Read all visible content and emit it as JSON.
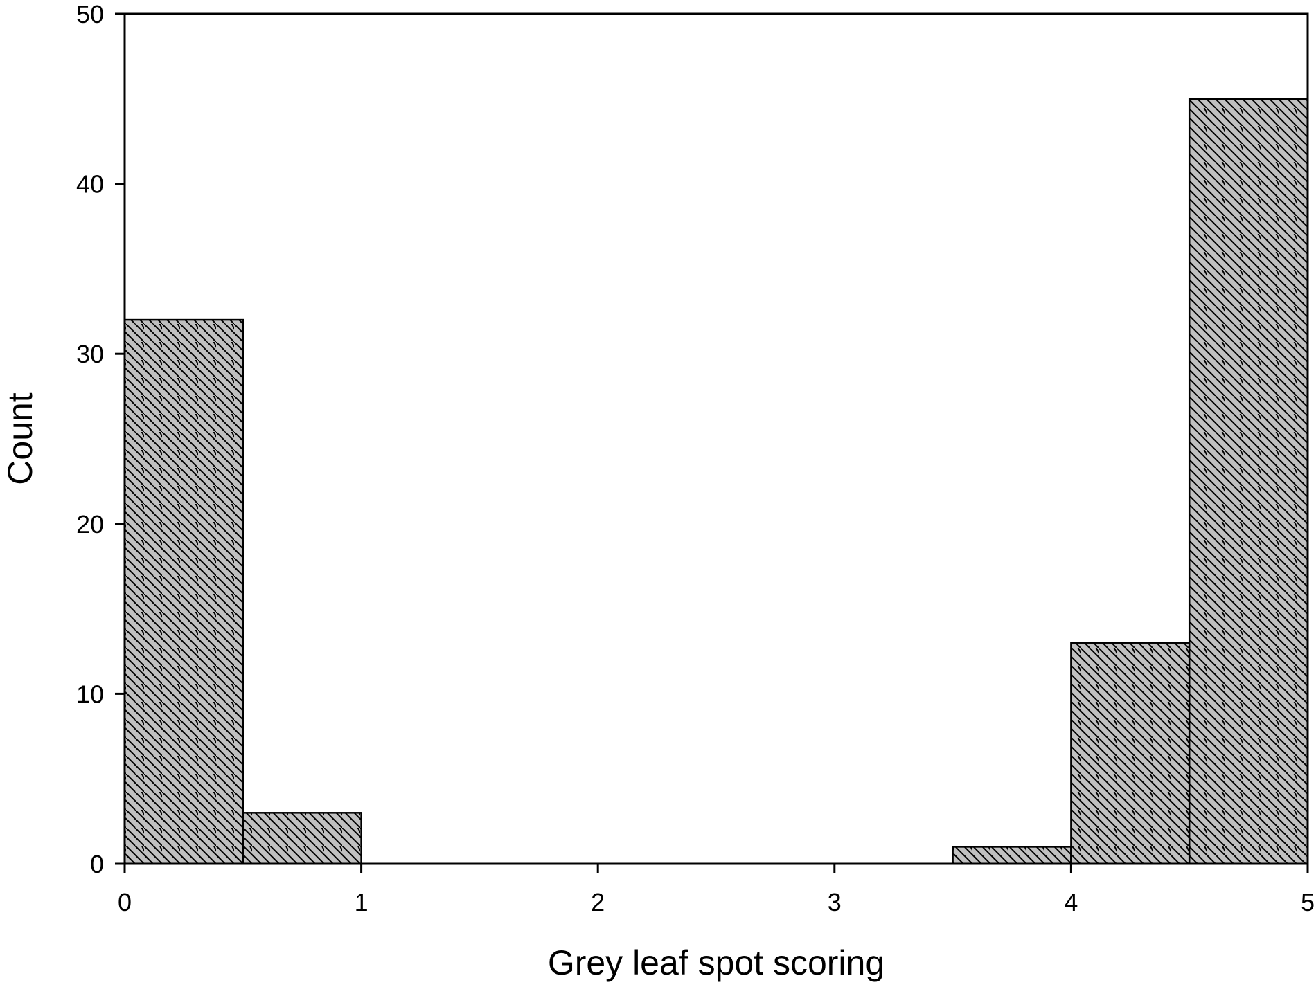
{
  "chart_data": {
    "type": "bar",
    "histogram": true,
    "xlabel": "Grey leaf spot scoring",
    "ylabel": "Count",
    "xlim": [
      0,
      5
    ],
    "ylim": [
      0,
      50
    ],
    "x_ticks": [
      0,
      1,
      2,
      3,
      4,
      5
    ],
    "y_ticks": [
      0,
      10,
      20,
      30,
      40,
      50
    ],
    "bins": [
      {
        "x0": 0.0,
        "x1": 0.5,
        "count": 32
      },
      {
        "x0": 0.5,
        "x1": 1.0,
        "count": 3
      },
      {
        "x0": 3.5,
        "x1": 4.0,
        "count": 1
      },
      {
        "x0": 4.0,
        "x1": 4.5,
        "count": 13
      },
      {
        "x0": 4.5,
        "x1": 5.0,
        "count": 45
      }
    ],
    "bar_fill": "#c0c0c0",
    "bar_hatch": "diagonal-backslash",
    "grid": false,
    "legend": "none"
  }
}
